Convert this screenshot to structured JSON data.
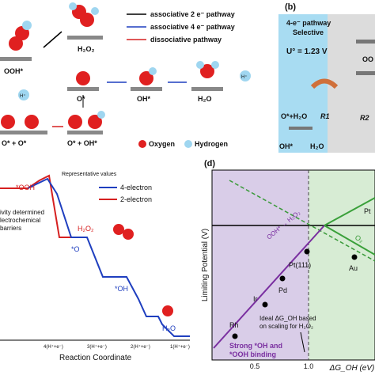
{
  "panel_a": {
    "legend": [
      "associative 2 e⁻ pathway",
      "associative 4 e⁻ pathway",
      "dissociative pathway"
    ],
    "labels": {
      "ooh": "OOH*",
      "h2o2": "H₂O₂",
      "o": "O*",
      "oh": "OH*",
      "h2o": "H₂O",
      "hplus1": "H⁺",
      "hplus2": "H⁺",
      "oo": "O* + O*",
      "ooh2": "O* + OH*"
    },
    "atom_legend": [
      "Oxygen",
      "Hydrogen"
    ]
  },
  "panel_b": {
    "tag": "(b)",
    "title": "4-e⁻ pathway",
    "subtitle": "Selective",
    "potential": "U° = 1.23 V",
    "o_h2o": "O*+H₂O",
    "r1": "R1",
    "r2": "R2",
    "oh": "OH*",
    "h2o": "H₂O",
    "oo": "OO"
  },
  "panel_c": {
    "note": "Representative values",
    "legend": [
      "4-electron",
      "2-electron"
    ],
    "ooh": "*OOH",
    "h2o2": "H₂O₂",
    "o": "*O",
    "oh": "*OH",
    "h2o": "H₂O",
    "side_text": [
      "ivity determined",
      "lectrochemical",
      "barriers"
    ],
    "ticks": [
      "4(H⁺+e⁻)",
      "3(H⁺+e⁻)",
      "2(H⁺+e⁻)",
      "1(H⁺+e⁻)"
    ],
    "xlabel": "Reaction Coordinate"
  },
  "panel_d": {
    "tag": "(d)",
    "ylabel": "Limiting Potential (V)",
    "xticks": [
      "0.5",
      "1.0"
    ],
    "xlabel": "ΔG_OH (eV)",
    "points": [
      "Rh",
      "Ir",
      "Pd",
      "Pt(111)",
      "Au",
      "Pt"
    ],
    "ideal": [
      "Ideal ΔG_OH based",
      "on scaling for H₂O₂"
    ],
    "strong": [
      "Strong *OH and",
      "*OOH binding"
    ],
    "path": "OOH* → H₂O₂",
    "o2": "O₂"
  }
}
